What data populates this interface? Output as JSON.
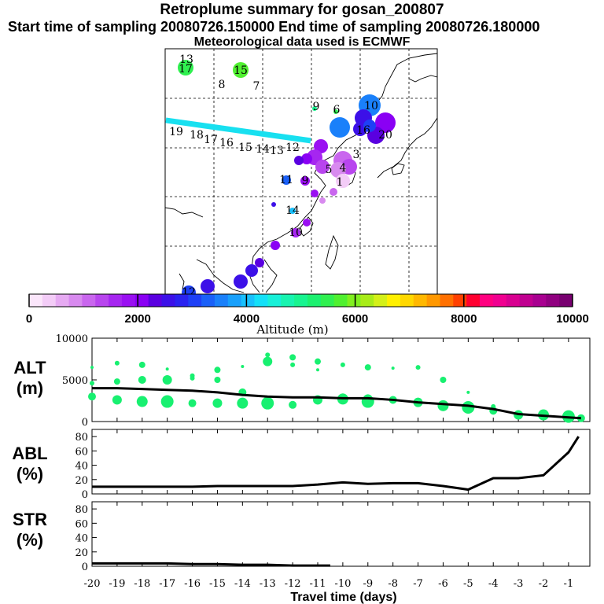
{
  "header": {
    "title": "Retroplume summary for gosan_200807",
    "sampling": "Start time of sampling 20080726.150000     End time of sampling 20080726.180000",
    "met": "Meteorological data used is ECMWF"
  },
  "colorbar": {
    "ticks": [
      "0",
      "2000",
      "4000",
      "6000",
      "8000",
      "10000"
    ],
    "label": "Altitude (m)",
    "colors": [
      "#fbe6fb",
      "#f3ccf7",
      "#e6aaf2",
      "#d88aef",
      "#c966ee",
      "#b845ee",
      "#a626f0",
      "#9a10f2",
      "#8a00f4",
      "#5a00e0",
      "#3c10e8",
      "#2a22f0",
      "#1e40f6",
      "#1a60f8",
      "#1a80fa",
      "#18a0fc",
      "#18c0fc",
      "#14e0f8",
      "#18f0d8",
      "#18f4b0",
      "#18f490",
      "#1cf070",
      "#30f050",
      "#50f030",
      "#80f020",
      "#a8ec18",
      "#d4f018",
      "#fff000",
      "#ffd800",
      "#ffb800",
      "#ff9800",
      "#ff7000",
      "#ff4000",
      "#ff0030",
      "#ff0080",
      "#f00090",
      "#d80090",
      "#c00090",
      "#a80090",
      "#900080",
      "#780070"
    ]
  },
  "map_labels": [
    {
      "t": "17",
      "c": "#30f050"
    },
    {
      "t": "15",
      "c": "#50f030"
    },
    {
      "t": "13",
      "c": "#ffd800"
    },
    {
      "t": "8",
      "c": "#ffd800"
    },
    {
      "t": "7",
      "c": "#ffd800"
    },
    {
      "t": "10",
      "c": "#1a80fa"
    },
    {
      "t": "9",
      "c": "#18f490"
    },
    {
      "t": "6",
      "c": "#30f050"
    },
    {
      "t": "20",
      "c": "#a626f0"
    },
    {
      "t": "16",
      "c": "#3c10e8"
    },
    {
      "t": "19",
      "c": "#18c0fc"
    },
    {
      "t": "18",
      "c": "#18c0fc"
    },
    {
      "t": "17",
      "c": "#18c0fc"
    },
    {
      "t": "16",
      "c": "#18c0fc"
    },
    {
      "t": "15",
      "c": "#18c0fc"
    },
    {
      "t": "14",
      "c": "#18c0fc"
    },
    {
      "t": "13",
      "c": "#18c0fc"
    },
    {
      "t": "12",
      "c": "#18c0fc"
    },
    {
      "t": "11",
      "c": "#1a60f8"
    },
    {
      "t": "9",
      "c": "#a626f0"
    },
    {
      "t": "3",
      "c": "#c966ee"
    },
    {
      "t": "5",
      "c": "#c966ee"
    },
    {
      "t": "4",
      "c": "#e6aaf2"
    },
    {
      "t": "1",
      "c": "#fbe6fb"
    },
    {
      "t": "14",
      "c": "#18c0fc"
    },
    {
      "t": "10",
      "c": "#9a10f2"
    },
    {
      "t": "12",
      "c": "#1a80fa"
    }
  ],
  "chart_data": [
    {
      "type": "scatter",
      "title": "ALT",
      "ylabel": "ALT (m)",
      "ylim": [
        0,
        10000
      ],
      "yticks": [
        "10000",
        "5000",
        "0"
      ],
      "series": [
        {
          "name": "mean altitude",
          "x": [
            -20,
            -19,
            -18,
            -17,
            -16,
            -15,
            -14,
            -13,
            -12,
            -11,
            -10,
            -9,
            -8,
            -7,
            -6,
            -5,
            -4,
            -3,
            -2,
            -1,
            -0.5
          ],
          "values": [
            4000,
            4000,
            3900,
            3800,
            3700,
            3500,
            3200,
            3000,
            2900,
            2900,
            2800,
            2800,
            2600,
            2300,
            2100,
            1900,
            1500,
            900,
            700,
            500,
            400
          ]
        },
        {
          "name": "plume clusters (high)",
          "x": [
            -20,
            -19,
            -18,
            -17,
            -16,
            -15,
            -14,
            -13,
            -12,
            -11,
            -10,
            -9,
            -8,
            -7,
            -6,
            -5,
            -4
          ],
          "values": [
            6500,
            7000,
            6800,
            6300,
            5500,
            6200,
            6600,
            8000,
            7700,
            6200,
            6800,
            6500,
            6400,
            6500,
            5000,
            3500,
            1800
          ]
        },
        {
          "name": "plume clusters (mid)",
          "x": [
            -20,
            -19,
            -18,
            -17,
            -16,
            -15,
            -14,
            -13,
            -12,
            -11,
            -10,
            -9
          ],
          "values": [
            4600,
            4800,
            5000,
            5000,
            5200,
            5000,
            3500,
            7200,
            6800,
            7200,
            2900,
            2700
          ]
        },
        {
          "name": "plume clusters (low)",
          "x": [
            -20,
            -19,
            -18,
            -17,
            -16,
            -15,
            -14,
            -13,
            -12,
            -11,
            -10,
            -9,
            -8,
            -7,
            -6,
            -5,
            -4,
            -3,
            -2,
            -1,
            -0.5
          ],
          "values": [
            3000,
            2600,
            2400,
            2400,
            2200,
            2200,
            2200,
            2200,
            2000,
            2600,
            2700,
            2400,
            2600,
            2300,
            1900,
            1700,
            1300,
            800,
            800,
            600,
            400
          ]
        }
      ]
    },
    {
      "type": "line",
      "title": "ABL",
      "ylabel": "ABL (%)",
      "ylim": [
        0,
        90
      ],
      "yticks": [
        "80",
        "60",
        "40",
        "20",
        "0"
      ],
      "x": [
        -20,
        -19,
        -18,
        -17,
        -16,
        -15,
        -14,
        -13,
        -12,
        -11,
        -10,
        -9,
        -8,
        -7,
        -6,
        -5,
        -4,
        -3,
        -2,
        -1,
        -0.6
      ],
      "values": [
        10,
        10,
        10,
        10,
        10,
        11,
        11,
        11,
        11,
        13,
        16,
        14,
        15,
        15,
        11,
        6,
        22,
        22,
        26,
        58,
        80
      ]
    },
    {
      "type": "line",
      "title": "STR",
      "ylabel": "STR (%)",
      "ylim": [
        0,
        90
      ],
      "yticks": [
        "80",
        "60",
        "40",
        "20",
        "0"
      ],
      "x": [
        -20,
        -19,
        -18,
        -17,
        -16,
        -15,
        -14,
        -13,
        -12,
        -11,
        -10.5
      ],
      "values": [
        4,
        4,
        4,
        4,
        3,
        3,
        2,
        2,
        1,
        1,
        1
      ],
      "xlabel": "Travel time (days)",
      "xticks": [
        "-20",
        "-19",
        "-18",
        "-17",
        "-16",
        "-15",
        "-14",
        "-13",
        "-12",
        "-11",
        "-10",
        "-9",
        "-8",
        "-7",
        "-6",
        "-5",
        "-4",
        "-3",
        "-2",
        "-1"
      ]
    }
  ],
  "panel_labels": {
    "alt_1": "ALT",
    "alt_2": "(m)",
    "abl_1": "ABL",
    "abl_2": "(%)",
    "str_1": "STR",
    "str_2": "(%)"
  }
}
